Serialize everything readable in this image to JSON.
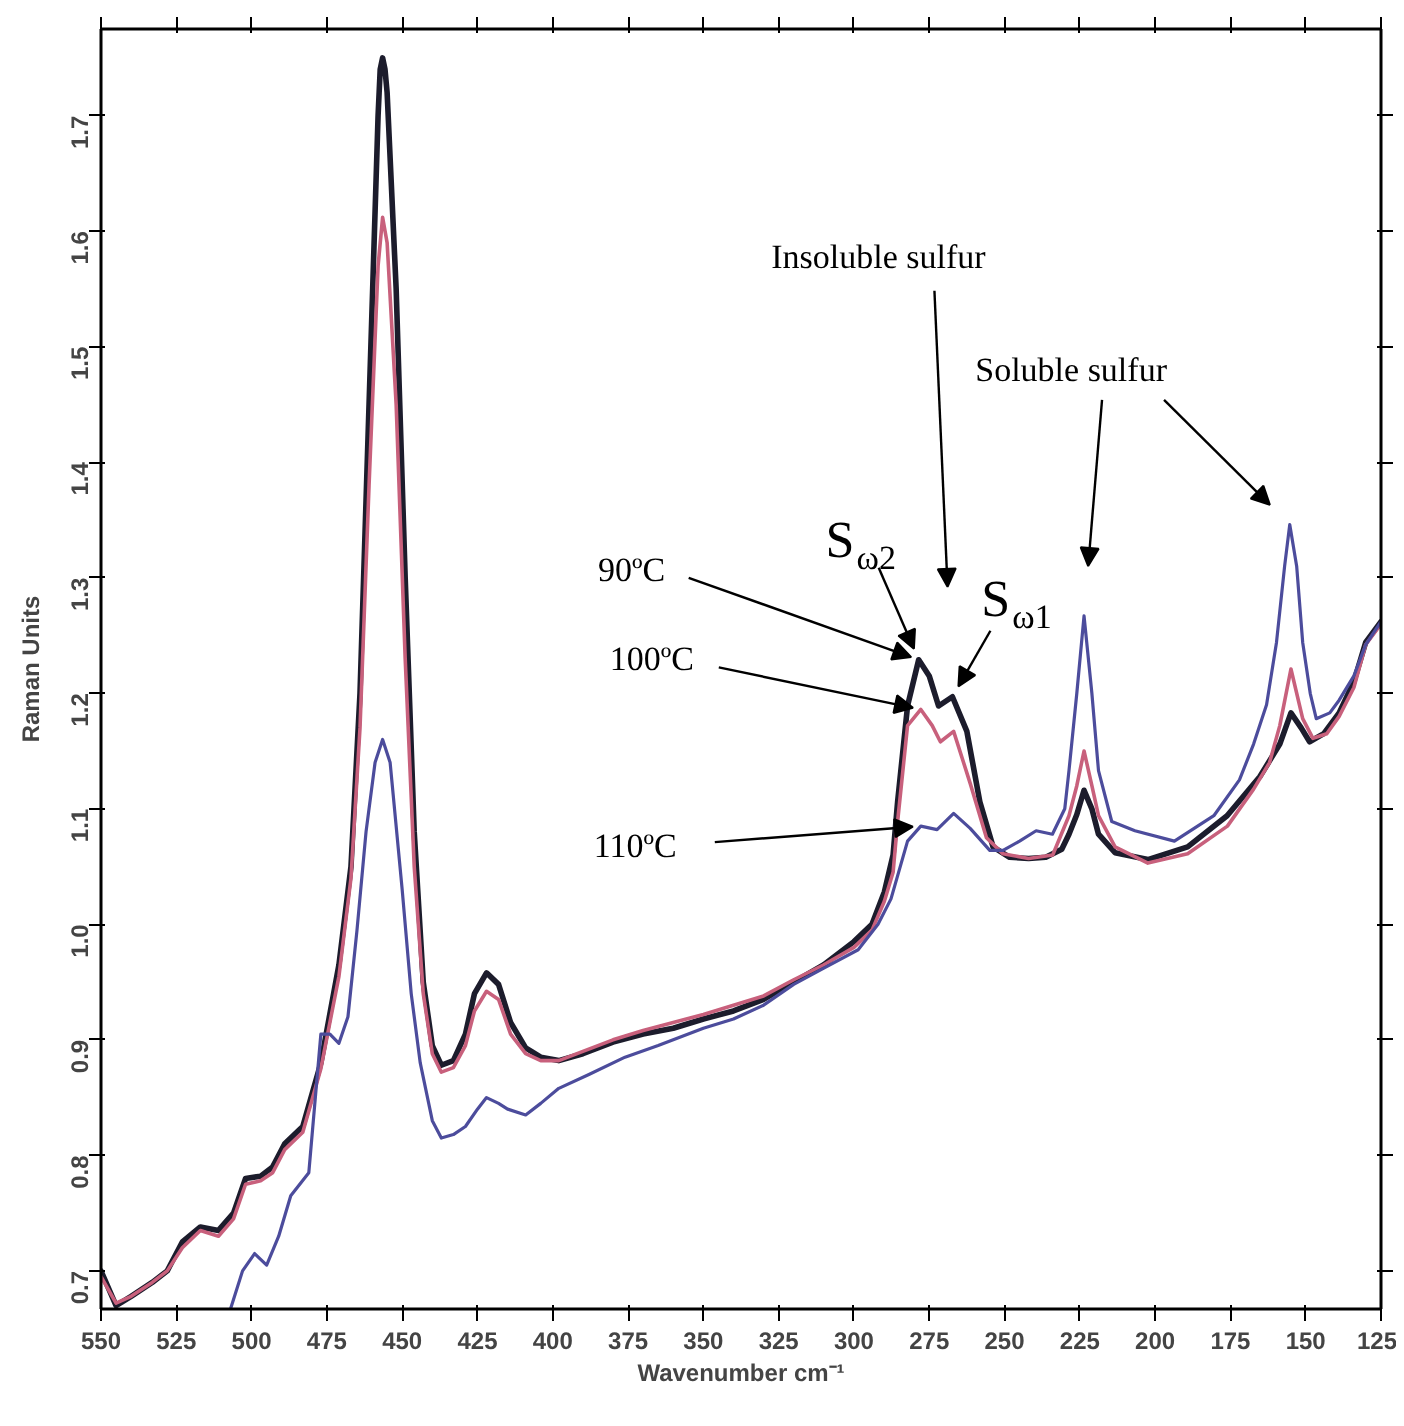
{
  "chart_data": {
    "type": "line",
    "xlabel": "Wavenumber cm⁻¹",
    "ylabel": "Raman Units",
    "xlim": [
      550,
      125
    ],
    "ylim": [
      0.667,
      1.775
    ],
    "xticks": [
      550,
      525,
      500,
      475,
      450,
      425,
      400,
      375,
      350,
      325,
      300,
      275,
      250,
      225,
      200,
      175,
      150,
      125
    ],
    "yticks": [
      0.7,
      0.8,
      0.9,
      {
        "value": 1,
        "label": "1.0"
      },
      1.1,
      1.2,
      1.3,
      1.4,
      1.5,
      1.6,
      1.7
    ],
    "series": [
      {
        "color": "#1c1c2c",
        "x": [
          550,
          545,
          540,
          533,
          528,
          523,
          517,
          511,
          506,
          502,
          497,
          493,
          489,
          483,
          477,
          471,
          467,
          464,
          461,
          458,
          457.3,
          456.5,
          455.7,
          455,
          452,
          449,
          446,
          443,
          440,
          437,
          433,
          429,
          426,
          422,
          418,
          414,
          409,
          404,
          398,
          390,
          380,
          370,
          360,
          350,
          340,
          330,
          320,
          310,
          300,
          294,
          289.9,
          287,
          285.5,
          282.2,
          278.5,
          275,
          271.9,
          267.3,
          262.5,
          258.2,
          253.8,
          248.3,
          242,
          236.3,
          231,
          228.6,
          226,
          223.6,
          221,
          218.8,
          213.3,
          202.4,
          189.2,
          176.1,
          165.2,
          158.6,
          154.9,
          151.5,
          148.7,
          144,
          138.9,
          134,
          130.1,
          125
        ],
        "values": [
          0.7,
          0.67,
          0.678,
          0.69,
          0.7,
          0.725,
          0.738,
          0.735,
          0.75,
          0.78,
          0.782,
          0.79,
          0.81,
          0.825,
          0.88,
          0.965,
          1.05,
          1.2,
          1.45,
          1.7,
          1.74,
          1.75,
          1.74,
          1.72,
          1.55,
          1.3,
          1.08,
          0.95,
          0.895,
          0.878,
          0.882,
          0.905,
          0.94,
          0.958,
          0.948,
          0.915,
          0.893,
          0.885,
          0.882,
          0.888,
          0.898,
          0.905,
          0.91,
          0.918,
          0.925,
          0.935,
          0.95,
          0.965,
          0.985,
          1.0,
          1.028,
          1.06,
          1.106,
          1.189,
          1.229,
          1.215,
          1.189,
          1.197,
          1.167,
          1.106,
          1.067,
          1.058,
          1.057,
          1.058,
          1.065,
          1.078,
          1.095,
          1.116,
          1.1,
          1.078,
          1.062,
          1.056,
          1.067,
          1.094,
          1.128,
          1.156,
          1.183,
          1.17,
          1.158,
          1.165,
          1.183,
          1.21,
          1.244,
          1.262
        ]
      },
      {
        "color": "#c8607c",
        "x": [
          550,
          545,
          540,
          533,
          528,
          523,
          517,
          511,
          506,
          502,
          497,
          493,
          489,
          483,
          477,
          471,
          467,
          464,
          461,
          458,
          456.5,
          455,
          452,
          449,
          446,
          443,
          440,
          437,
          433,
          429,
          426,
          422,
          418,
          414,
          409,
          404,
          398,
          390,
          380,
          370,
          360,
          350,
          340,
          330,
          320,
          310,
          300,
          294,
          289.9,
          287,
          285.5,
          282.2,
          277.8,
          274,
          271.3,
          266.9,
          261.4,
          256,
          250.5,
          242,
          234,
          228.6,
          226,
          223.6,
          221,
          218.8,
          213.3,
          202.4,
          189.2,
          176,
          167.3,
          162,
          158.6,
          154.9,
          151,
          147.6,
          143,
          138.9,
          134,
          130.1,
          125
        ],
        "values": [
          0.695,
          0.672,
          0.678,
          0.69,
          0.7,
          0.72,
          0.735,
          0.73,
          0.745,
          0.775,
          0.778,
          0.785,
          0.805,
          0.82,
          0.875,
          0.955,
          1.04,
          1.17,
          1.38,
          1.57,
          1.612,
          1.59,
          1.45,
          1.23,
          1.05,
          0.94,
          0.888,
          0.872,
          0.876,
          0.895,
          0.925,
          0.942,
          0.935,
          0.905,
          0.888,
          0.882,
          0.882,
          0.89,
          0.9,
          0.908,
          0.915,
          0.922,
          0.93,
          0.938,
          0.952,
          0.965,
          0.98,
          0.995,
          1.02,
          1.045,
          1.089,
          1.172,
          1.186,
          1.172,
          1.158,
          1.167,
          1.122,
          1.075,
          1.061,
          1.057,
          1.06,
          1.094,
          1.12,
          1.15,
          1.12,
          1.094,
          1.067,
          1.053,
          1.061,
          1.085,
          1.117,
          1.14,
          1.172,
          1.221,
          1.178,
          1.161,
          1.165,
          1.18,
          1.205,
          1.242,
          1.26
        ]
      },
      {
        "color": "#4c4c9c",
        "x": [
          507,
          503,
          499,
          495,
          491,
          487,
          481,
          477,
          474,
          471,
          468,
          465,
          462,
          459,
          456.5,
          454,
          450,
          447,
          444,
          440,
          437,
          433,
          429,
          425,
          422,
          418,
          415,
          409,
          404,
          398,
          388,
          376,
          365,
          350,
          340,
          330,
          320,
          310,
          298.6,
          292,
          287.7,
          282.2,
          277.8,
          272.4,
          266.9,
          261.4,
          254.9,
          250.5,
          245,
          239.5,
          234.1,
          230,
          228.6,
          226,
          223.6,
          221,
          218.8,
          214.4,
          206.7,
          193.6,
          180.5,
          172,
          167.3,
          163,
          159.7,
          157,
          155.3,
          153,
          151,
          148.5,
          146.5,
          142,
          138.9,
          134,
          130.1,
          125
        ],
        "values": [
          0.667,
          0.7,
          0.715,
          0.705,
          0.73,
          0.765,
          0.785,
          0.905,
          0.905,
          0.897,
          0.92,
          0.995,
          1.08,
          1.14,
          1.16,
          1.14,
          1.03,
          0.94,
          0.88,
          0.83,
          0.815,
          0.818,
          0.825,
          0.84,
          0.85,
          0.845,
          0.84,
          0.835,
          0.845,
          0.858,
          0.87,
          0.885,
          0.895,
          0.91,
          0.918,
          0.93,
          0.948,
          0.962,
          0.978,
          1.0,
          1.022,
          1.072,
          1.085,
          1.082,
          1.096,
          1.083,
          1.064,
          1.064,
          1.072,
          1.081,
          1.078,
          1.1,
          1.133,
          1.2,
          1.267,
          1.2,
          1.133,
          1.089,
          1.081,
          1.072,
          1.094,
          1.125,
          1.156,
          1.19,
          1.244,
          1.31,
          1.346,
          1.31,
          1.244,
          1.2,
          1.178,
          1.183,
          1.194,
          1.215,
          1.242,
          1.262
        ]
      }
    ],
    "annotations": [
      "Insoluble sulfur",
      "Soluble sulfur",
      {
        "text": "S$_{ω2}$",
        "x": 278.5,
        "y": 1.229
      },
      {
        "text": "S$_{ω1}$",
        "x": 267.3,
        "y": 1.197
      },
      {
        "text": "90ºC",
        "x": 278.5,
        "y": 1.229
      },
      {
        "text": "100ºC",
        "x": 277.8,
        "y": 1.186
      },
      {
        "text": "110ºC",
        "x": 277.8,
        "y": 1.085
      }
    ]
  }
}
